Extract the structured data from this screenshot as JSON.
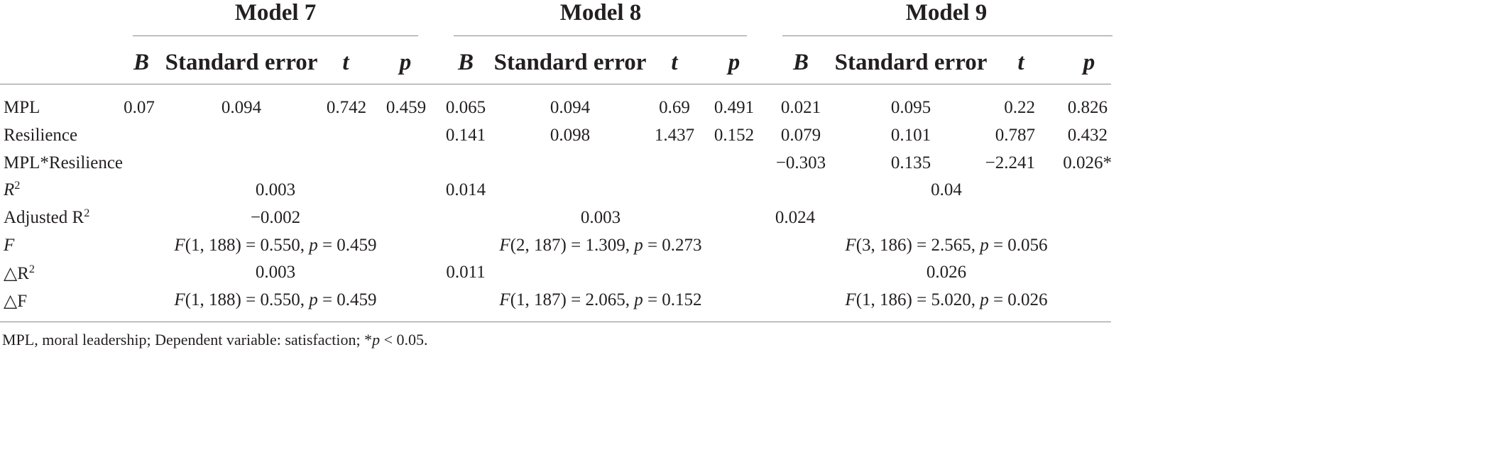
{
  "models": [
    "Model 7",
    "Model 8",
    "Model 9"
  ],
  "subheaders": {
    "b": "B",
    "se": "Standard error",
    "t": "t",
    "p": "p"
  },
  "rows": {
    "mpl": {
      "label": "MPL",
      "m7": {
        "b": "0.07",
        "se": "0.094",
        "t": "0.742",
        "p": "0.459"
      },
      "m8": {
        "b": "0.065",
        "se": "0.094",
        "t": "0.69",
        "p": "0.491"
      },
      "m9": {
        "b": "0.021",
        "se": "0.095",
        "t": "0.22",
        "p": "0.826"
      }
    },
    "res": {
      "label": "Resilience",
      "m8": {
        "b": "0.141",
        "se": "0.098",
        "t": "1.437",
        "p": "0.152"
      },
      "m9": {
        "b": "0.079",
        "se": "0.101",
        "t": "0.787",
        "p": "0.432"
      }
    },
    "inter": {
      "label": "MPL*Resilience",
      "m9": {
        "b": "−0.303",
        "se": "0.135",
        "t": "−2.241",
        "p": "0.026*"
      }
    },
    "r2": {
      "label_main": "R",
      "label_sup": "2",
      "m7": "0.003",
      "m8": "0.014",
      "m9": "0.04"
    },
    "adjr2": {
      "label_main": "Adjusted R",
      "label_sup": "2",
      "m7": "−0.002",
      "m8": "0.003",
      "m9": "0.024"
    },
    "f": {
      "label": "F",
      "m7": {
        "fpre": "(1, 188) = 0.550, ",
        "pval": " = 0.459"
      },
      "m8": {
        "fpre": "(2, 187) = 1.309, ",
        "pval": " = 0.273"
      },
      "m9": {
        "fpre": "(3, 186) = 2.565, ",
        "pval": " = 0.056"
      }
    },
    "dr2": {
      "label_main": "△R",
      "label_sup": "2",
      "m7": "0.003",
      "m8": "0.011",
      "m9": "0.026"
    },
    "df": {
      "label": "△F",
      "m7": {
        "fpre": "(1, 188) = 0.550, ",
        "pval": " = 0.459"
      },
      "m8": {
        "fpre": "(1, 187) = 2.065, ",
        "pval": " = 0.152"
      },
      "m9": {
        "fpre": "(1, 186) = 5.020, ",
        "pval": " = 0.026"
      }
    }
  },
  "footnote": {
    "pre": "MPL, moral leadership; Dependent variable: satisfaction; *",
    "post": " < 0.05."
  },
  "letters": {
    "F": "F",
    "p": "p"
  }
}
